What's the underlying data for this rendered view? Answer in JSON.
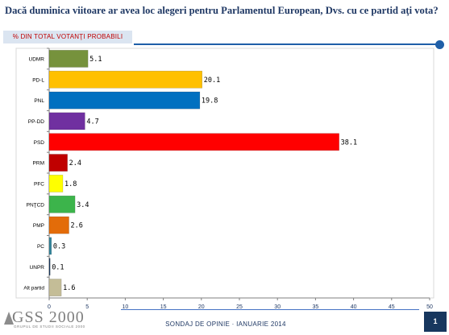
{
  "header": {
    "title": "Dacă duminica viitoare ar avea loc alegeri pentru Parlamentul European, Dvs. cu ce partid aţi vota?",
    "subtitle": "% DIN TOTAL VOTANŢI PROBABILI"
  },
  "footer": {
    "text": "SONDAJ DE OPINIE · IANUARIE 2014",
    "logo_text": "GSS 2000",
    "logo_sub": "GRUPUL DE STUDII SOCIALE 2000",
    "page_number": "1"
  },
  "colors": {
    "title": "#1f3864",
    "subtitle_text": "#c00000",
    "subtitle_bg": "#dbe5f1",
    "accent": "#1f5fa8",
    "page_box": "#17375e"
  },
  "chart_data": {
    "type": "bar",
    "orientation": "horizontal",
    "categories": [
      "UDMR",
      "PD-L",
      "PNL",
      "PP-DD",
      "PSD",
      "PRM",
      "PFC",
      "PNŢCD",
      "PMP",
      "PC",
      "UNPR",
      "Alt partid"
    ],
    "values": [
      5.1,
      20.1,
      19.8,
      4.7,
      38.1,
      2.4,
      1.8,
      3.4,
      2.6,
      0.3,
      0.1,
      1.6
    ],
    "value_labels": [
      "5.1",
      "20.1",
      "19.8",
      "4.7",
      "38.1",
      "2.4",
      "1.8",
      "3.4",
      "2.6",
      "0.3",
      "0.1",
      "1.6"
    ],
    "bar_colors": [
      "#76923c",
      "#ffc000",
      "#0070c0",
      "#7030a0",
      "#ff0000",
      "#c00000",
      "#ffff00",
      "#3cb44b",
      "#e36c09",
      "#31849b",
      "#17375e",
      "#c4bd97"
    ],
    "xlim": [
      0,
      50
    ],
    "xticks": [
      0,
      5,
      10,
      15,
      20,
      25,
      30,
      35,
      40,
      45,
      50
    ],
    "grid": false
  }
}
